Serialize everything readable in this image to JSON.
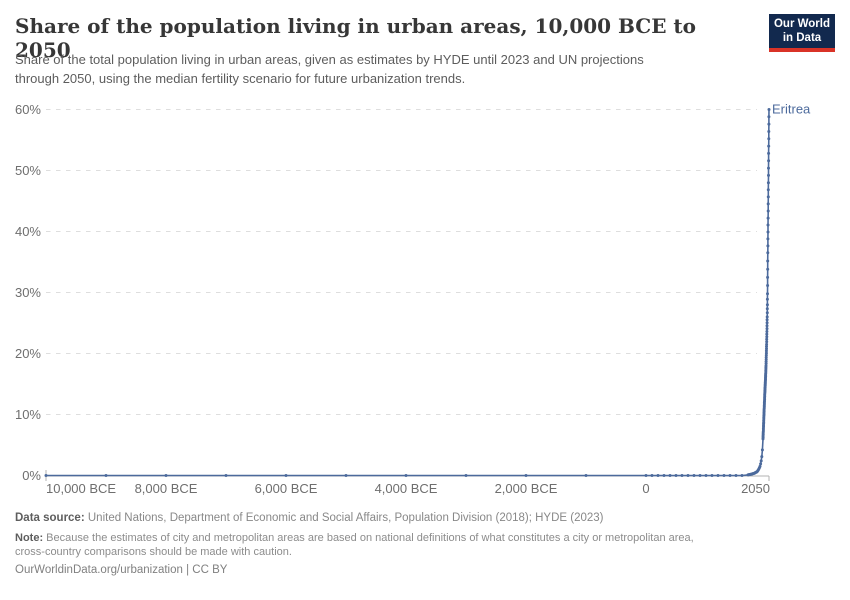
{
  "header": {
    "title": "Share of the population living in urban areas, 10,000 BCE to 2050",
    "subtitle_lines": [
      "Share of the total population living in urban areas, given as estimates by HYDE until 2023 and UN projections",
      "through 2050, using the median fertility scenario for future urbanization trends."
    ]
  },
  "logo": {
    "line1": "Our World",
    "line2": "in Data"
  },
  "footer": {
    "datasource_label": "Data source:",
    "datasource_text": "United Nations, Department of Economic and Social Affairs, Population Division (2018); HYDE (2023)",
    "note_label": "Note:",
    "note_lines": [
      "Because the estimates of city and metropolitan areas are based on national definitions of what constitutes a city or metropolitan area,",
      "cross-country comparisons should be made with caution."
    ],
    "attribution": "OurWorldinData.org/urbanization | CC BY"
  },
  "colors": {
    "series": "#4c6a9c",
    "grid": "#dedede",
    "axis": "#b3b3b3",
    "tick_text": "#6e6e6e",
    "logo_bg": "#12294e",
    "logo_red": "#d93327"
  },
  "chart_data": {
    "type": "line",
    "title": "Share of the population living in urban areas, 10,000 BCE to 2050",
    "unit": "%",
    "entity_label": "Eritrea",
    "x_domain": [
      -10000,
      2050
    ],
    "y_domain": [
      0,
      60
    ],
    "grid": "dashed-horizontal",
    "legend_position": "end-of-line-label",
    "y_ticks": [
      {
        "value": 0,
        "label": "0%"
      },
      {
        "value": 10,
        "label": "10%"
      },
      {
        "value": 20,
        "label": "20%"
      },
      {
        "value": 30,
        "label": "30%"
      },
      {
        "value": 40,
        "label": "40%"
      },
      {
        "value": 50,
        "label": "50%"
      },
      {
        "value": 60,
        "label": "60%"
      }
    ],
    "x_ticks": [
      {
        "year": -10000,
        "label": "10,000 BCE",
        "anchor": "start"
      },
      {
        "year": -8000,
        "label": "8,000 BCE",
        "anchor": "middle"
      },
      {
        "year": -6000,
        "label": "6,000 BCE",
        "anchor": "middle"
      },
      {
        "year": -4000,
        "label": "4,000 BCE",
        "anchor": "middle"
      },
      {
        "year": -2000,
        "label": "2,000 BCE",
        "anchor": "middle"
      },
      {
        "year": 0,
        "label": "0",
        "anchor": "middle"
      },
      {
        "year": 2050,
        "label": "2050",
        "anchor": "end"
      }
    ],
    "series": [
      {
        "name": "Eritrea",
        "color": "#4c6a9c",
        "anchor_points": [
          [
            -10000,
            0
          ],
          [
            0,
            0
          ],
          [
            1600,
            0
          ],
          [
            1650,
            0.05
          ],
          [
            1700,
            0.1
          ],
          [
            1750,
            0.2
          ],
          [
            1800,
            0.35
          ],
          [
            1850,
            0.6
          ],
          [
            1875,
            0.95
          ],
          [
            1900,
            1.5
          ],
          [
            1910,
            1.9
          ],
          [
            1920,
            2.4
          ],
          [
            1930,
            3.1
          ],
          [
            1940,
            4.2
          ],
          [
            1950,
            6
          ],
          [
            1955,
            7.2
          ],
          [
            1960,
            8.5
          ],
          [
            1965,
            9.8
          ],
          [
            1970,
            11
          ],
          [
            1975,
            12.2
          ],
          [
            1980,
            13.5
          ],
          [
            1985,
            14.5
          ],
          [
            1990,
            15.5
          ],
          [
            1995,
            16.7
          ],
          [
            2000,
            18
          ],
          [
            2005,
            19.7
          ],
          [
            2010,
            21.5
          ],
          [
            2015,
            23.6
          ],
          [
            2020,
            26
          ],
          [
            2023,
            28
          ],
          [
            2025,
            29.8
          ],
          [
            2030,
            36.5
          ],
          [
            2035,
            42.2
          ],
          [
            2040,
            48
          ],
          [
            2045,
            54
          ],
          [
            2050,
            60
          ]
        ],
        "marker_steps": [
          [
            -10000,
            1000
          ],
          [
            0,
            100
          ],
          [
            1700,
            10
          ],
          [
            1950,
            1
          ]
        ]
      }
    ]
  }
}
